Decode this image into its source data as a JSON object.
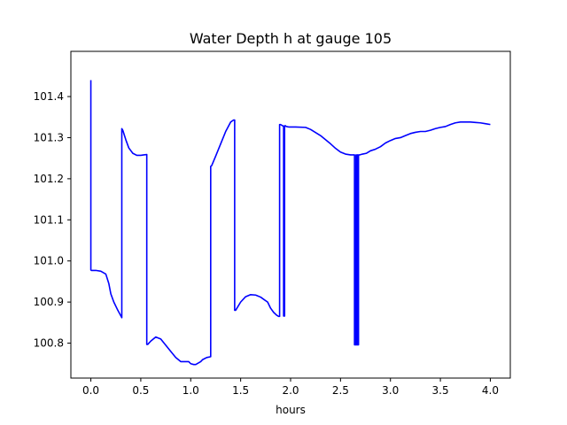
{
  "chart_data": {
    "type": "line",
    "title": "Water Depth h at gauge 105",
    "xlabel": "hours",
    "ylabel": "",
    "xlim": [
      -0.2,
      4.2
    ],
    "ylim": [
      100.715,
      101.51
    ],
    "xticks": [
      0.0,
      0.5,
      1.0,
      1.5,
      2.0,
      2.5,
      3.0,
      3.5,
      4.0
    ],
    "xtick_labels": [
      "0.0",
      "0.5",
      "1.0",
      "1.5",
      "2.0",
      "2.5",
      "3.0",
      "3.5",
      "4.0"
    ],
    "yticks": [
      100.8,
      100.9,
      101.0,
      101.1,
      101.2,
      101.3,
      101.4
    ],
    "ytick_labels": [
      "100.8",
      "100.9",
      "101.0",
      "101.1",
      "101.2",
      "101.3",
      "101.4"
    ],
    "grid": false,
    "legend": "none",
    "color": "#0000ff",
    "series": [
      {
        "x": [
          0.0,
          0.0,
          0.005,
          0.05,
          0.1,
          0.15,
          0.18,
          0.2,
          0.23,
          0.27,
          0.31,
          0.31,
          0.32,
          0.35,
          0.38,
          0.42,
          0.46,
          0.5,
          0.53,
          0.56,
          0.56,
          0.57,
          0.6,
          0.65,
          0.7,
          0.75,
          0.8,
          0.85,
          0.9,
          0.95,
          0.98,
          1.0,
          1.03,
          1.05,
          1.1,
          1.12,
          1.16,
          1.2,
          1.2,
          1.21,
          1.25,
          1.3,
          1.35,
          1.4,
          1.43,
          1.44,
          1.44,
          1.45,
          1.5,
          1.55,
          1.6,
          1.65,
          1.7,
          1.74,
          1.77,
          1.8,
          1.83,
          1.86,
          1.88,
          1.89,
          1.89,
          1.9,
          1.92,
          1.93,
          1.93,
          1.94,
          1.94,
          1.95,
          1.95,
          1.96,
          1.98,
          2.05,
          2.15,
          2.2,
          2.3,
          2.35,
          2.4,
          2.45,
          2.5,
          2.55,
          2.6,
          2.63,
          2.64,
          2.64,
          2.65,
          2.655,
          2.655,
          2.665,
          2.665,
          2.67,
          2.67,
          2.68,
          2.68,
          2.69,
          2.72,
          2.76,
          2.8,
          2.85,
          2.9,
          2.95,
          3.0,
          3.05,
          3.1,
          3.15,
          3.2,
          3.25,
          3.3,
          3.35,
          3.4,
          3.45,
          3.5,
          3.55,
          3.6,
          3.65,
          3.7,
          3.75,
          3.8,
          3.85,
          3.9,
          3.95,
          4.0
        ],
        "y": [
          101.44,
          100.978,
          100.977,
          100.977,
          100.975,
          100.968,
          100.945,
          100.92,
          100.9,
          100.88,
          100.862,
          101.322,
          101.318,
          101.295,
          101.275,
          101.262,
          101.257,
          101.257,
          101.258,
          101.259,
          100.797,
          100.797,
          100.805,
          100.815,
          100.81,
          100.795,
          100.78,
          100.765,
          100.755,
          100.755,
          100.755,
          100.75,
          100.748,
          100.748,
          100.755,
          100.76,
          100.765,
          100.767,
          101.23,
          101.232,
          101.255,
          101.285,
          101.315,
          101.338,
          101.343,
          101.343,
          100.88,
          100.88,
          100.9,
          100.913,
          100.918,
          100.917,
          100.912,
          100.905,
          100.9,
          100.885,
          100.875,
          100.868,
          100.865,
          100.865,
          101.332,
          101.332,
          101.329,
          101.328,
          100.866,
          100.866,
          101.329,
          101.329,
          101.328,
          101.327,
          101.326,
          101.326,
          101.325,
          101.32,
          101.305,
          101.295,
          101.285,
          101.274,
          101.265,
          101.26,
          101.258,
          101.258,
          101.258,
          100.796,
          100.796,
          101.258,
          100.796,
          100.796,
          101.258,
          101.258,
          100.796,
          100.796,
          101.258,
          101.258,
          101.26,
          101.262,
          101.268,
          101.272,
          101.278,
          101.287,
          101.293,
          101.298,
          101.3,
          101.305,
          101.31,
          101.313,
          101.315,
          101.315,
          101.318,
          101.322,
          101.325,
          101.327,
          101.332,
          101.336,
          101.338,
          101.338,
          101.338,
          101.337,
          101.336,
          101.334,
          101.332
        ]
      }
    ]
  }
}
